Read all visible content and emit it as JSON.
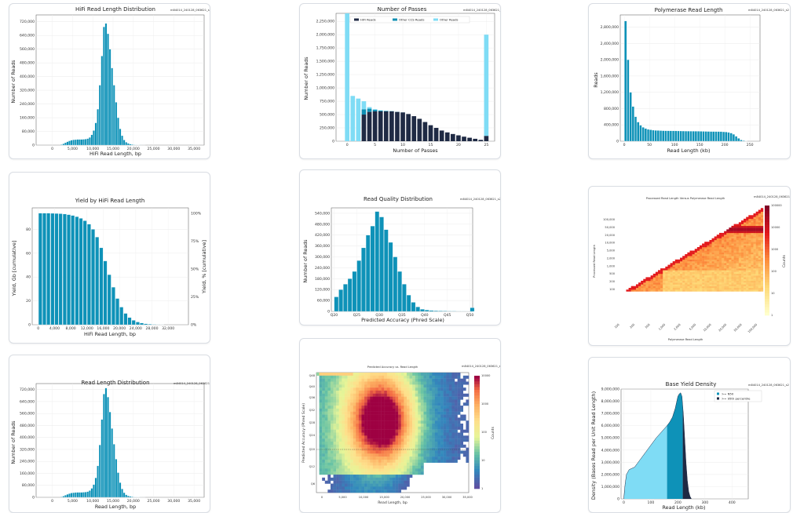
{
  "run_id": "m84014_240128_063621_s2",
  "chart_data": [
    {
      "id": "hifi-length",
      "type": "bar",
      "title": "HiFi Read Length Distribution",
      "xlabel": "HiFi Read Length, bp",
      "ylabel": "Number of Reads",
      "xlim": [
        -4000,
        37500
      ],
      "ylim": [
        0,
        760000
      ],
      "xticks": [
        0,
        5000,
        10000,
        15000,
        20000,
        25000,
        30000,
        35000
      ],
      "xtick_labels": [
        "0",
        "5,000",
        "10,000",
        "15,000",
        "20,000",
        "25,000",
        "30,000",
        "35,000"
      ],
      "yticks": [
        0,
        80000,
        160000,
        240000,
        320000,
        400000,
        480000,
        560000,
        640000,
        720000
      ],
      "ytick_labels": [
        "0",
        "80,000",
        "160,000",
        "240,000",
        "320,000",
        "400,000",
        "480,000",
        "560,000",
        "640,000",
        "720,000"
      ],
      "bin_start": 2000,
      "bin_width": 500,
      "values": [
        3000,
        8000,
        14000,
        20000,
        25000,
        29000,
        31000,
        32000,
        33000,
        33000,
        33000,
        34000,
        35000,
        38000,
        45000,
        60000,
        85000,
        130000,
        210000,
        350000,
        520000,
        690000,
        710000,
        650000,
        560000,
        450000,
        350000,
        250000,
        160000,
        95000,
        55000,
        30000,
        17000,
        10000,
        6000,
        3500,
        2000,
        1200,
        700,
        400,
        200,
        100
      ]
    },
    {
      "id": "passes",
      "type": "bar",
      "title": "Number of Passes",
      "xlabel": "Number of Passes",
      "ylabel": "Number of Reads",
      "xlim": [
        -2,
        26.5
      ],
      "ylim": [
        0,
        2400000
      ],
      "xticks": [
        0,
        5,
        10,
        15,
        20,
        25
      ],
      "xtick_labels": [
        "0",
        "5",
        "10",
        "15",
        "20",
        "25"
      ],
      "yticks": [
        0,
        250000,
        500000,
        750000,
        1000000,
        1250000,
        1500000,
        1750000,
        2000000,
        2250000
      ],
      "ytick_labels": [
        "0",
        "250,000",
        "500,000",
        "750,000",
        "1,000,000",
        "1,250,000",
        "1,500,000",
        "1,750,000",
        "2,000,000",
        "2,250,000"
      ],
      "legend": [
        "HiFi Reads",
        "Other CCS Reads",
        "Other Reads"
      ],
      "categories": [
        0,
        1,
        2,
        3,
        4,
        5,
        6,
        7,
        8,
        9,
        10,
        11,
        12,
        13,
        14,
        15,
        16,
        17,
        18,
        19,
        20,
        21,
        22,
        23,
        24,
        25
      ],
      "series": [
        {
          "name": "HiFi Reads",
          "color": "#1f2a44",
          "values": [
            0,
            0,
            0,
            500000,
            550000,
            560000,
            560000,
            560000,
            560000,
            550000,
            540000,
            510000,
            470000,
            420000,
            360000,
            300000,
            250000,
            200000,
            165000,
            135000,
            110000,
            85000,
            65000,
            45000,
            25000,
            100000
          ]
        },
        {
          "name": "Other CCS Reads",
          "color": "#0f8fb3",
          "values": [
            0,
            0,
            0,
            100000,
            60000,
            30000,
            15000,
            8000,
            4000,
            2000,
            1000,
            500,
            0,
            0,
            0,
            0,
            0,
            0,
            0,
            0,
            0,
            0,
            0,
            0,
            0,
            0
          ]
        },
        {
          "name": "Other Reads",
          "color": "#7fdcf5",
          "values": [
            2400000,
            850000,
            800000,
            150000,
            30000,
            10000,
            5000,
            2000,
            0,
            0,
            0,
            0,
            0,
            0,
            0,
            0,
            0,
            0,
            0,
            0,
            0,
            0,
            0,
            0,
            0,
            1900000
          ]
        }
      ]
    },
    {
      "id": "polymerase",
      "type": "bar",
      "title": "Polymerase Read Length",
      "xlabel": "Read Length (kb)",
      "ylabel": "Reads",
      "xlim": [
        -8,
        270
      ],
      "ylim": [
        0,
        3100000
      ],
      "xticks": [
        0,
        50,
        100,
        150,
        200,
        250
      ],
      "xtick_labels": [
        "0",
        "50",
        "100",
        "150",
        "200",
        "250"
      ],
      "yticks": [
        0,
        400000,
        800000,
        1200000,
        1600000,
        2000000,
        2400000,
        2800000
      ],
      "ytick_labels": [
        "0",
        "400,000",
        "800,000",
        "1,200,000",
        "1,600,000",
        "2,000,000",
        "2,400,000",
        "2,800,000"
      ],
      "bin_start": 0,
      "bin_width": 5,
      "values": [
        2950000,
        2000000,
        1200000,
        850000,
        600000,
        470000,
        390000,
        340000,
        310000,
        290000,
        280000,
        270000,
        265000,
        262000,
        260000,
        258000,
        256000,
        255000,
        254000,
        253000,
        252000,
        251000,
        250000,
        249000,
        248000,
        247000,
        246000,
        245000,
        244000,
        243000,
        242000,
        241000,
        240000,
        239000,
        238000,
        237000,
        236000,
        235000,
        234000,
        230000,
        225000,
        215000,
        200000,
        170000,
        120000,
        70000,
        30000,
        12000,
        4000
      ]
    },
    {
      "id": "yield",
      "type": "bar",
      "title": "Yield by HiFi Read Length",
      "xlabel": "HiFi Read Length, bp",
      "ylabel": "Yield, Gb [cumulative]",
      "ylabel_right": "Yield, % [cumulative]",
      "xlim": [
        -1500,
        37000
      ],
      "ylim": [
        0,
        98
      ],
      "xticks": [
        0,
        4000,
        8000,
        12000,
        16000,
        20000,
        24000,
        28000,
        32000
      ],
      "xtick_labels": [
        "0",
        "4,000",
        "8,000",
        "12,000",
        "16,000",
        "20,000",
        "24,000",
        "28,000",
        "32,000"
      ],
      "yticks": [
        0,
        20,
        40,
        60,
        80
      ],
      "ytick_labels": [
        "0",
        "20",
        "40",
        "60",
        "80"
      ],
      "yticks_right_labels": [
        "0%",
        "25%",
        "50%",
        "75%",
        "100%"
      ],
      "bin_start": 0,
      "bin_width": 1000,
      "values": [
        93.5,
        93.5,
        93.5,
        93.4,
        93.3,
        93.1,
        92.8,
        92.3,
        91.6,
        90.6,
        89.2,
        87.2,
        84.3,
        80.0,
        73.5,
        64.5,
        53.5,
        42.0,
        31.5,
        22.0,
        14.8,
        9.5,
        6.0,
        3.7,
        2.3,
        1.4,
        0.8,
        0.5,
        0.3,
        0.2,
        0.1
      ]
    },
    {
      "id": "quality",
      "type": "bar",
      "title": "Read Quality Distribution",
      "xlabel": "Predicted Accuracy (Phred Scale)",
      "ylabel": "Number of Reads",
      "xlim": [
        19.4,
        50.6
      ],
      "ylim": [
        0,
        570000
      ],
      "xticks": [
        20,
        25,
        30,
        35,
        40,
        45,
        50
      ],
      "xtick_labels": [
        "Q20",
        "Q25",
        "Q30",
        "Q35",
        "Q40",
        "Q45",
        "Q50"
      ],
      "yticks": [
        0,
        60000,
        120000,
        180000,
        240000,
        300000,
        360000,
        420000,
        480000,
        540000
      ],
      "ytick_labels": [
        "0",
        "60,000",
        "120,000",
        "180,000",
        "240,000",
        "300,000",
        "360,000",
        "420,000",
        "480,000",
        "540,000"
      ],
      "bin_start": 20,
      "bin_width": 1,
      "values": [
        80000,
        120000,
        150000,
        180000,
        220000,
        280000,
        350000,
        420000,
        470000,
        550000,
        520000,
        450000,
        380000,
        300000,
        220000,
        150000,
        90000,
        50000,
        25000,
        12000,
        8000,
        5000,
        4000,
        3000,
        2500,
        2000,
        2000,
        1500,
        1500,
        1000,
        20000
      ]
    },
    {
      "id": "heat-pol",
      "type": "heatmap",
      "title": "Processed Read Length Versus Polymerase Read Length",
      "xlabel": "Polymerase Read Length",
      "ylabel": "Processed Read Length",
      "colorbar_label": "Counts",
      "xtick_labels": [
        "100",
        "200",
        "500",
        "1,000",
        "2,000",
        "5,000",
        "10,000",
        "20,000",
        "50,000",
        "100,000"
      ],
      "ytick_labels": [
        "100",
        "200",
        "500",
        "1,000",
        "2,000",
        "5,000",
        "10,000",
        "20,000",
        "50,000",
        "100,000"
      ],
      "colorbar_tick_labels": [
        "1",
        "10",
        "100",
        "1000",
        "10000",
        "100000"
      ]
    },
    {
      "id": "read-length",
      "type": "bar",
      "title": "Read Length Distribution",
      "xlabel": "Read Length, bp",
      "ylabel": "Number of Reads",
      "xlim": [
        -4000,
        37500
      ],
      "ylim": [
        0,
        760000
      ],
      "xticks": [
        0,
        5000,
        10000,
        15000,
        20000,
        25000,
        30000,
        35000
      ],
      "xtick_labels": [
        "0",
        "5,000",
        "10,000",
        "15,000",
        "20,000",
        "25,000",
        "30,000",
        "35,000"
      ],
      "yticks": [
        0,
        80000,
        160000,
        240000,
        320000,
        400000,
        480000,
        560000,
        640000,
        720000
      ],
      "ytick_labels": [
        "0",
        "80,000",
        "160,000",
        "240,000",
        "320,000",
        "400,000",
        "480,000",
        "560,000",
        "640,000",
        "720,000"
      ],
      "bin_start": 2000,
      "bin_width": 500,
      "values": [
        3000,
        8000,
        14000,
        20000,
        25000,
        29000,
        31000,
        32000,
        33000,
        33000,
        33000,
        34000,
        35000,
        38000,
        45000,
        60000,
        85000,
        130000,
        210000,
        350000,
        520000,
        690000,
        730000,
        670000,
        570000,
        460000,
        355000,
        255000,
        165000,
        98000,
        56000,
        31000,
        17000,
        10000,
        6000,
        3500,
        2000,
        1200,
        700,
        400,
        200,
        100
      ]
    },
    {
      "id": "heat-acc",
      "type": "heatmap",
      "title": "Predicted Accuracy vs. Read Length",
      "xlabel": "Read Length, bp",
      "ylabel": "Predicted Accuracy (Phred Scale)",
      "colorbar_label": "Counts",
      "xtick_labels": [
        "0",
        "5,000",
        "10,000",
        "15,000",
        "20,000",
        "25,000",
        "30,000",
        "35,000"
      ],
      "ytick_labels": [
        "Q48",
        "Q40",
        "Q36",
        "Q32",
        "Q28",
        "Q24",
        "Q20",
        "Q12",
        "Q6"
      ],
      "colorbar_tick_labels": [
        "10000",
        "1000",
        "100",
        "10",
        "1"
      ]
    },
    {
      "id": "density",
      "type": "area",
      "title": "Base Yield Density",
      "xlabel": "Read Length (kb)",
      "ylabel": "Density (Bases Read per Unit Read Length)",
      "xlim": [
        -10,
        460
      ],
      "ylim": [
        0,
        9000000
      ],
      "xticks": [
        0,
        100,
        200,
        300,
        400
      ],
      "xtick_labels": [
        "0",
        "100",
        "200",
        "300",
        "400"
      ],
      "yticks": [
        0,
        1000000,
        2000000,
        3000000,
        4000000,
        5000000,
        6000000,
        7000000,
        8000000,
        9000000
      ],
      "ytick_labels": [
        "0",
        "1,000,000",
        "2,000,000",
        "3,000,000",
        "4,000,000",
        "5,000,000",
        "6,000,000",
        "7,000,000",
        "8,000,000",
        "9,000,000"
      ],
      "legend": [
        ">= N50",
        ">= 95th percentile"
      ],
      "x": [
        0,
        5,
        10,
        20,
        30,
        40,
        50,
        60,
        80,
        100,
        120,
        140,
        160,
        170,
        180,
        190,
        195,
        200,
        205,
        210,
        215,
        220,
        225,
        230,
        235,
        240,
        245,
        250
      ],
      "y": [
        0,
        1200000,
        2000000,
        2400000,
        2500000,
        2600000,
        2900000,
        3200000,
        3800000,
        4400000,
        5000000,
        5500000,
        6000000,
        6300000,
        6700000,
        7400000,
        7900000,
        8400000,
        8600000,
        8700000,
        8400000,
        7000000,
        5000000,
        3000000,
        1500000,
        600000,
        200000,
        0
      ],
      "n50": 160,
      "p95": 218
    }
  ]
}
